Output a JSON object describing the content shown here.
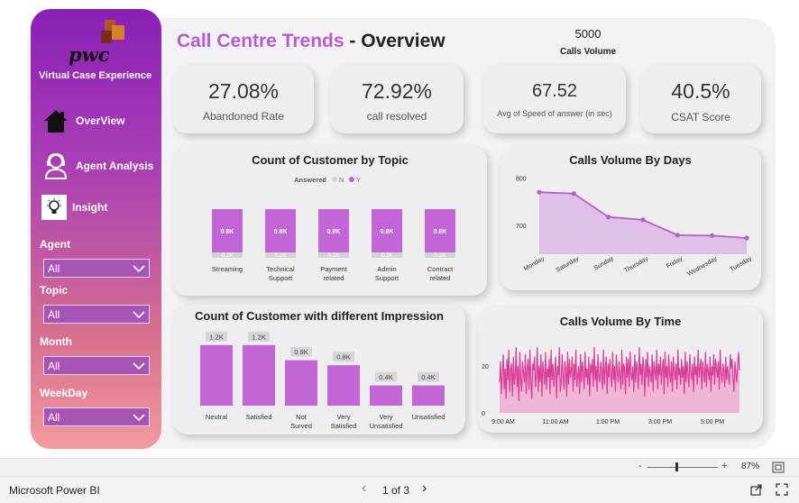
{
  "title": {
    "part1": "Call Centre Trends",
    "sep": " - ",
    "part2": "Overview"
  },
  "calls_volume": {
    "value": "5000",
    "label": "Calls Volume"
  },
  "sidebar": {
    "logo_text": "pwc",
    "subtitle": "Virtual  Case Experience",
    "nav": [
      {
        "label": "OverView"
      },
      {
        "label": "Agent Analysis"
      },
      {
        "label": "Insight"
      }
    ],
    "slicers": [
      {
        "label": "Agent",
        "value": "All"
      },
      {
        "label": "Topic",
        "value": "All"
      },
      {
        "label": "Month",
        "value": "All"
      },
      {
        "label": "WeekDay",
        "value": "All"
      }
    ]
  },
  "kpis": [
    {
      "value": "27.08%",
      "label": "Abandoned Rate"
    },
    {
      "value": "72.92%",
      "label": "call resolved"
    },
    {
      "value": "67.52",
      "label": "Avg of Speed of answer (in sec)"
    },
    {
      "value": "40.5%",
      "label": "CSAT Score"
    }
  ],
  "colors": {
    "accent": "#b85ccf",
    "bar": "#c265d6",
    "bar_n": "#d3d3d3",
    "area_fill": "#dcb5e6",
    "line": "#b760cb",
    "time_line": "#dc3d96",
    "time_fill": "#efb6d8"
  },
  "chart_data": [
    {
      "type": "bar",
      "title": "Count of Customer by Topic",
      "legend_title": "Answered",
      "legend": [
        "N",
        "Y"
      ],
      "categories": [
        "Streaming",
        "Technical Support",
        "Payment related",
        "Admin Support",
        "Contract related"
      ],
      "series": [
        {
          "name": "N",
          "values": [
            0.2,
            0.2,
            0.2,
            0.2,
            0.2
          ],
          "labels": [
            "0.2K",
            "0.2K",
            "0.2K",
            "0.2K",
            "0.2K"
          ]
        },
        {
          "name": "Y",
          "values": [
            0.8,
            0.8,
            0.8,
            0.8,
            0.8
          ],
          "labels": [
            "0.8K",
            "0.8K",
            "0.8K",
            "0.8K",
            "0.8K"
          ]
        }
      ],
      "stacked": true
    },
    {
      "type": "area",
      "title": "Calls Volume By Days",
      "categories": [
        "Monday",
        "Saturday",
        "Sunday",
        "Thursday",
        "Friday",
        "Wednesday",
        "Tuesday"
      ],
      "values": [
        770,
        767,
        718,
        712,
        680,
        679,
        674
      ],
      "yticks": [
        700,
        800
      ],
      "ylim": [
        640,
        810
      ]
    },
    {
      "type": "bar",
      "title": "Count of Customer with different Impression",
      "categories": [
        "Neutral",
        "Satisfied",
        "Not Surved",
        "Very Satisfied",
        "Very Unsatisfied",
        "Unsatisfied"
      ],
      "values": [
        1.2,
        1.2,
        0.9,
        0.8,
        0.4,
        0.4
      ],
      "labels": [
        "1.2K",
        "1.2K",
        "0.9K",
        "0.8K",
        "0.4K",
        "0.4K"
      ]
    },
    {
      "type": "area",
      "title": "Calls Volume By Time",
      "xticks": [
        "9:00 AM",
        "11:00 AM",
        "1:00 PM",
        "3:00 PM",
        "5:00 PM"
      ],
      "yticks": [
        0,
        20
      ],
      "ylim": [
        0,
        30
      ],
      "values": [
        13,
        22,
        8,
        17,
        25,
        10,
        19,
        6,
        23,
        14,
        27,
        9,
        18,
        21,
        7,
        24,
        12,
        16,
        28,
        11,
        20,
        5,
        26,
        15,
        9,
        22,
        17,
        13,
        25,
        8,
        19,
        23,
        10,
        27,
        14,
        6,
        21,
        18,
        24,
        11,
        16,
        28,
        9,
        20,
        13,
        25,
        7,
        22,
        17,
        12,
        26,
        10,
        19,
        15,
        23,
        8,
        27,
        14,
        21,
        11,
        18,
        24,
        6,
        20,
        16,
        28,
        9,
        13,
        25,
        17,
        10,
        22,
        19,
        7,
        26,
        12,
        23,
        15,
        18,
        24,
        9,
        21,
        14,
        27,
        11,
        16,
        20,
        8,
        25,
        13,
        22,
        18,
        10,
        26,
        15,
        19,
        12,
        24,
        7,
        21,
        17,
        23,
        11,
        28,
        14,
        20,
        9,
        25,
        16,
        13,
        22,
        18,
        10,
        27,
        12,
        19,
        24,
        8,
        21,
        15,
        23,
        17,
        11,
        26,
        14,
        20,
        9,
        25,
        18,
        13,
        22,
        16,
        10,
        27,
        12,
        21,
        19,
        8,
        24,
        15,
        23,
        11,
        26,
        17,
        14,
        20,
        9,
        25,
        13,
        22,
        18,
        10,
        28,
        16,
        21,
        12,
        24,
        19,
        7,
        23,
        15,
        26,
        11,
        20,
        17,
        13,
        25,
        9,
        22,
        18,
        14,
        27,
        10,
        21,
        16,
        24,
        12,
        19,
        23,
        8,
        26,
        15,
        20,
        11,
        25,
        17,
        13,
        22,
        9,
        24,
        18,
        14,
        21,
        10,
        27,
        16,
        19,
        12,
        23,
        15,
        20,
        8,
        26,
        13,
        22,
        17,
        11,
        25,
        18,
        14,
        21,
        9,
        24,
        16,
        20,
        12,
        27,
        15,
        19,
        23,
        10,
        22,
        17,
        13,
        26,
        11,
        21,
        18,
        14,
        24,
        9,
        20,
        16,
        25,
        12,
        23,
        19,
        15,
        22,
        10,
        27,
        17,
        13,
        21,
        18,
        11,
        24,
        14,
        20,
        16,
        12,
        25,
        19,
        23,
        15,
        9,
        22,
        17,
        13,
        21,
        26,
        18
      ]
    }
  ],
  "statusbar": {
    "minus": "-",
    "plus": "+",
    "zoom": "87%"
  },
  "taskbar": {
    "app_name": "Microsoft Power BI",
    "page_indicator": "1 of 3",
    "prev": "‹",
    "next": "›"
  }
}
